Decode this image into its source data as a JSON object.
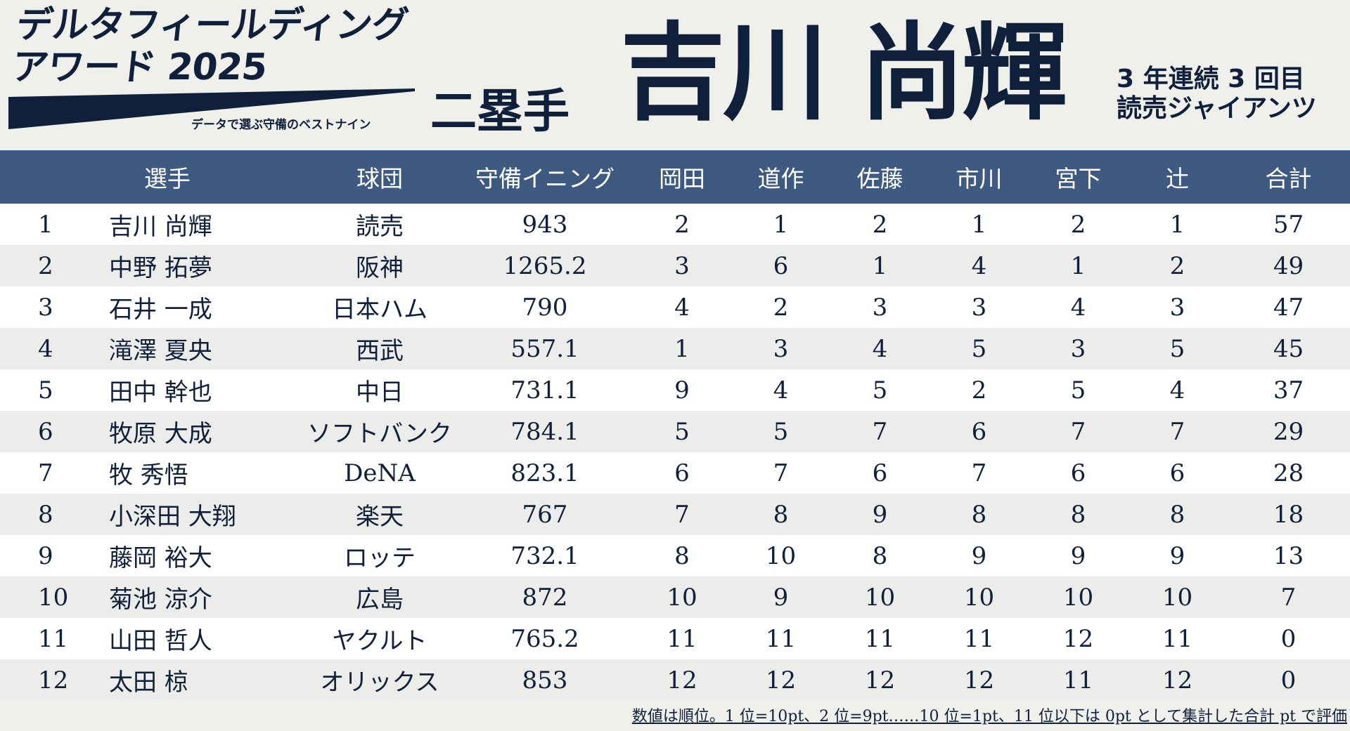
{
  "header": {
    "award_line1": "デルタフィールディング",
    "award_line2": "アワード 2025",
    "subtitle": "データで選ぶ守備のベストナイン",
    "position": "二塁手",
    "player_name": "吉川 尚輝",
    "info_line1": "3 年連続 3 回目",
    "info_line2": "読売ジャイアンツ"
  },
  "table": {
    "headers": [
      "",
      "選手",
      "球団",
      "守備イニング",
      "岡田",
      "道作",
      "佐藤",
      "市川",
      "宮下",
      "辻",
      "合計"
    ],
    "rows": [
      [
        "1",
        "吉川 尚輝",
        "読売",
        "943",
        "2",
        "1",
        "2",
        "1",
        "2",
        "1",
        "57"
      ],
      [
        "2",
        "中野 拓夢",
        "阪神",
        "1265.2",
        "3",
        "6",
        "1",
        "4",
        "1",
        "2",
        "49"
      ],
      [
        "3",
        "石井 一成",
        "日本ハム",
        "790",
        "4",
        "2",
        "3",
        "3",
        "4",
        "3",
        "47"
      ],
      [
        "4",
        "滝澤 夏央",
        "西武",
        "557.1",
        "1",
        "3",
        "4",
        "5",
        "3",
        "5",
        "45"
      ],
      [
        "5",
        "田中 幹也",
        "中日",
        "731.1",
        "9",
        "4",
        "5",
        "2",
        "5",
        "4",
        "37"
      ],
      [
        "6",
        "牧原 大成",
        "ソフトバンク",
        "784.1",
        "5",
        "5",
        "7",
        "6",
        "7",
        "7",
        "29"
      ],
      [
        "7",
        "牧 秀悟",
        "DeNA",
        "823.1",
        "6",
        "7",
        "6",
        "7",
        "6",
        "6",
        "28"
      ],
      [
        "8",
        "小深田 大翔",
        "楽天",
        "767",
        "7",
        "8",
        "9",
        "8",
        "8",
        "8",
        "18"
      ],
      [
        "9",
        "藤岡 裕大",
        "ロッテ",
        "732.1",
        "8",
        "10",
        "8",
        "9",
        "9",
        "9",
        "13"
      ],
      [
        "10",
        "菊池 涼介",
        "広島",
        "872",
        "10",
        "9",
        "10",
        "10",
        "10",
        "10",
        "7"
      ],
      [
        "11",
        "山田 哲人",
        "ヤクルト",
        "765.2",
        "11",
        "11",
        "11",
        "11",
        "12",
        "11",
        "0"
      ],
      [
        "12",
        "太田 椋",
        "オリックス",
        "853",
        "12",
        "12",
        "12",
        "12",
        "11",
        "12",
        "0"
      ]
    ]
  },
  "footnote": "数値は順位。1 位=10pt、2 位=9pt……10 位=1pt、11 位以下は 0pt として集計した合計 pt で評価"
}
